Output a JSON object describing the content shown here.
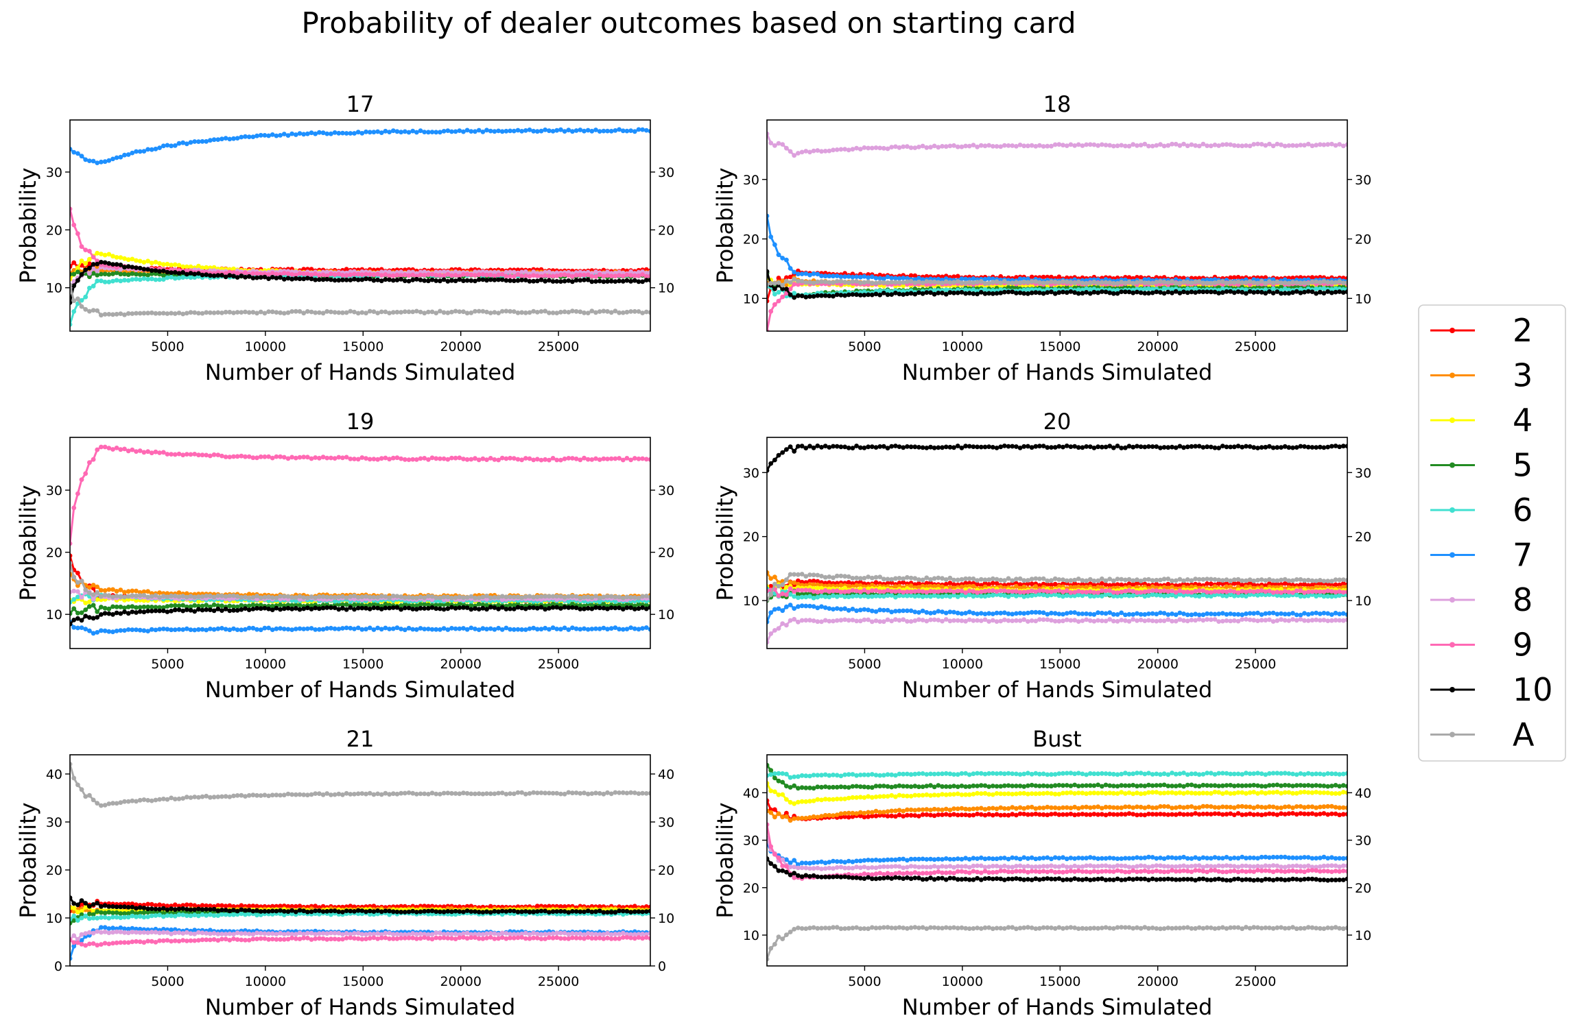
{
  "title": "Probability of dealer outcomes based on starting card",
  "legend": {
    "placement": "right",
    "entries": [
      {
        "label": "2",
        "color": "#ff0000"
      },
      {
        "label": "3",
        "color": "#ff8c00"
      },
      {
        "label": "4",
        "color": "#ffff00"
      },
      {
        "label": "5",
        "color": "#228b22"
      },
      {
        "label": "6",
        "color": "#40e0d0"
      },
      {
        "label": "7",
        "color": "#1e90ff"
      },
      {
        "label": "8",
        "color": "#dda0dd"
      },
      {
        "label": "9",
        "color": "#ff69b4"
      },
      {
        "label": "10",
        "color": "#000000"
      },
      {
        "label": "A",
        "color": "#a9a9a9"
      }
    ]
  },
  "chart_data": [
    {
      "type": "line",
      "title": "17",
      "xlabel": "Number of Hands Simulated",
      "ylabel": "Probability",
      "xlim": [
        0,
        29700
      ],
      "ylim": [
        2.5,
        39
      ],
      "xticks": [
        5000,
        10000,
        15000,
        20000,
        25000
      ],
      "yticks": [
        10,
        20,
        30
      ],
      "series": [
        {
          "name": "2",
          "start": 14,
          "peak": 13.5,
          "final": 13.0
        },
        {
          "name": "3",
          "start": 13,
          "peak": 13.0,
          "final": 12.6
        },
        {
          "name": "4",
          "start": 11,
          "peak": 16.0,
          "final": 12.3
        },
        {
          "name": "5",
          "start": 12,
          "peak": 12.5,
          "final": 12.0
        },
        {
          "name": "6",
          "start": 3.5,
          "peak": 11.0,
          "final": 12.2
        },
        {
          "name": "7",
          "start": 34,
          "peak": 31.5,
          "final": 37.2
        },
        {
          "name": "8",
          "start": 10,
          "peak": 13.5,
          "final": 12.6
        },
        {
          "name": "9",
          "start": 24,
          "peak": 14.0,
          "final": 12.1
        },
        {
          "name": "10",
          "start": 8,
          "peak": 14.5,
          "final": 11.2
        },
        {
          "name": "A",
          "start": 10,
          "peak": 5.3,
          "final": 5.8
        }
      ]
    },
    {
      "type": "line",
      "title": "18",
      "xlabel": "Number of Hands Simulated",
      "ylabel": "Probability",
      "xlim": [
        0,
        29700
      ],
      "ylim": [
        4.5,
        40
      ],
      "xticks": [
        5000,
        10000,
        15000,
        20000,
        25000
      ],
      "yticks": [
        10,
        20,
        30
      ],
      "series": [
        {
          "name": "2",
          "start": 10,
          "peak": 14.5,
          "final": 13.4
        },
        {
          "name": "3",
          "start": 12,
          "peak": 13.0,
          "final": 12.2
        },
        {
          "name": "4",
          "start": 13,
          "peak": 12.5,
          "final": 12.1
        },
        {
          "name": "5",
          "start": 14,
          "peak": 10.5,
          "final": 11.8
        },
        {
          "name": "6",
          "start": 12,
          "peak": 10.5,
          "final": 11.5
        },
        {
          "name": "7",
          "start": 24,
          "peak": 14.2,
          "final": 13.0
        },
        {
          "name": "8",
          "start": 38,
          "peak": 34.5,
          "final": 35.8
        },
        {
          "name": "9",
          "start": 5,
          "peak": 12.5,
          "final": 12.5
        },
        {
          "name": "10",
          "start": 14,
          "peak": 10.3,
          "final": 11.0
        },
        {
          "name": "A",
          "start": 12,
          "peak": 12.8,
          "final": 12.7
        }
      ]
    },
    {
      "type": "line",
      "title": "19",
      "xlabel": "Number of Hands Simulated",
      "ylabel": "Probability",
      "xlim": [
        0,
        29700
      ],
      "ylim": [
        4.5,
        38.5
      ],
      "xticks": [
        5000,
        10000,
        15000,
        20000,
        25000
      ],
      "yticks": [
        10,
        20,
        30
      ],
      "series": [
        {
          "name": "2",
          "start": 20,
          "peak": 13.0,
          "final": 12.3
        },
        {
          "name": "3",
          "start": 16,
          "peak": 14.0,
          "final": 12.9
        },
        {
          "name": "4",
          "start": 12,
          "peak": 12.5,
          "final": 12.1
        },
        {
          "name": "5",
          "start": 10,
          "peak": 11.0,
          "final": 11.5
        },
        {
          "name": "6",
          "start": 12,
          "peak": 13.0,
          "final": 12.2
        },
        {
          "name": "7",
          "start": 9,
          "peak": 7.3,
          "final": 7.7
        },
        {
          "name": "8",
          "start": 14,
          "peak": 12.8,
          "final": 12.5
        },
        {
          "name": "9",
          "start": 22,
          "peak": 37.0,
          "final": 35.0
        },
        {
          "name": "10",
          "start": 8,
          "peak": 10.0,
          "final": 11.0
        },
        {
          "name": "A",
          "start": 18,
          "peak": 13.0,
          "final": 12.8
        }
      ]
    },
    {
      "type": "line",
      "title": "20",
      "xlabel": "Number of Hands Simulated",
      "ylabel": "Probability",
      "xlim": [
        0,
        29700
      ],
      "ylim": [
        2.5,
        35.5
      ],
      "xticks": [
        5000,
        10000,
        15000,
        20000,
        25000
      ],
      "yticks": [
        10,
        20,
        30
      ],
      "series": [
        {
          "name": "2",
          "start": 11,
          "peak": 13.0,
          "final": 12.5
        },
        {
          "name": "3",
          "start": 14,
          "peak": 12.5,
          "final": 12.0
        },
        {
          "name": "4",
          "start": 12,
          "peak": 12.0,
          "final": 11.6
        },
        {
          "name": "5",
          "start": 10,
          "peak": 11.0,
          "final": 11.0
        },
        {
          "name": "6",
          "start": 12,
          "peak": 10.5,
          "final": 10.8
        },
        {
          "name": "7",
          "start": 7,
          "peak": 9.2,
          "final": 7.9
        },
        {
          "name": "8",
          "start": 4,
          "peak": 6.8,
          "final": 6.9
        },
        {
          "name": "9",
          "start": 11,
          "peak": 11.5,
          "final": 11.4
        },
        {
          "name": "10",
          "start": 30,
          "peak": 34.0,
          "final": 34.0
        },
        {
          "name": "A",
          "start": 10,
          "peak": 14.0,
          "final": 13.2
        }
      ]
    },
    {
      "type": "line",
      "title": "21",
      "xlabel": "Number of Hands Simulated",
      "ylabel": "Probability",
      "xlim": [
        0,
        29700
      ],
      "ylim": [
        0,
        44
      ],
      "xticks": [
        5000,
        10000,
        15000,
        20000,
        25000
      ],
      "yticks": [
        0,
        10,
        20,
        30,
        40
      ],
      "series": [
        {
          "name": "2",
          "start": 11,
          "peak": 13.0,
          "final": 12.3
        },
        {
          "name": "3",
          "start": 12,
          "peak": 11.5,
          "final": 11.8
        },
        {
          "name": "4",
          "start": 12,
          "peak": 11.5,
          "final": 11.6
        },
        {
          "name": "5",
          "start": 9,
          "peak": 11.0,
          "final": 11.2
        },
        {
          "name": "6",
          "start": 10,
          "peak": 10.0,
          "final": 10.9
        },
        {
          "name": "7",
          "start": 2,
          "peak": 8.0,
          "final": 7.0
        },
        {
          "name": "8",
          "start": 5,
          "peak": 7.0,
          "final": 6.7
        },
        {
          "name": "9",
          "start": 5,
          "peak": 4.5,
          "final": 5.8
        },
        {
          "name": "10",
          "start": 14,
          "peak": 12.5,
          "final": 11.3
        },
        {
          "name": "A",
          "start": 42,
          "peak": 33.5,
          "final": 36.0
        }
      ]
    },
    {
      "type": "line",
      "title": "Bust",
      "xlabel": "Number of Hands Simulated",
      "ylabel": "Probability",
      "xlim": [
        0,
        29700
      ],
      "ylim": [
        3.5,
        48
      ],
      "xticks": [
        5000,
        10000,
        15000,
        20000,
        25000
      ],
      "yticks": [
        10,
        20,
        30,
        40
      ],
      "series": [
        {
          "name": "2",
          "start": 38,
          "peak": 34.5,
          "final": 35.5
        },
        {
          "name": "3",
          "start": 36,
          "peak": 34.5,
          "final": 37.0
        },
        {
          "name": "4",
          "start": 42,
          "peak": 38.0,
          "final": 40.0
        },
        {
          "name": "5",
          "start": 46,
          "peak": 41.0,
          "final": 41.5
        },
        {
          "name": "6",
          "start": 44,
          "peak": 43.5,
          "final": 44.0
        },
        {
          "name": "7",
          "start": 30,
          "peak": 25.0,
          "final": 26.3
        },
        {
          "name": "8",
          "start": 30,
          "peak": 24.0,
          "final": 24.5
        },
        {
          "name": "9",
          "start": 33,
          "peak": 22.0,
          "final": 23.5
        },
        {
          "name": "10",
          "start": 26,
          "peak": 22.5,
          "final": 21.7
        },
        {
          "name": "A",
          "start": 5,
          "peak": 11.5,
          "final": 11.5
        }
      ]
    }
  ]
}
